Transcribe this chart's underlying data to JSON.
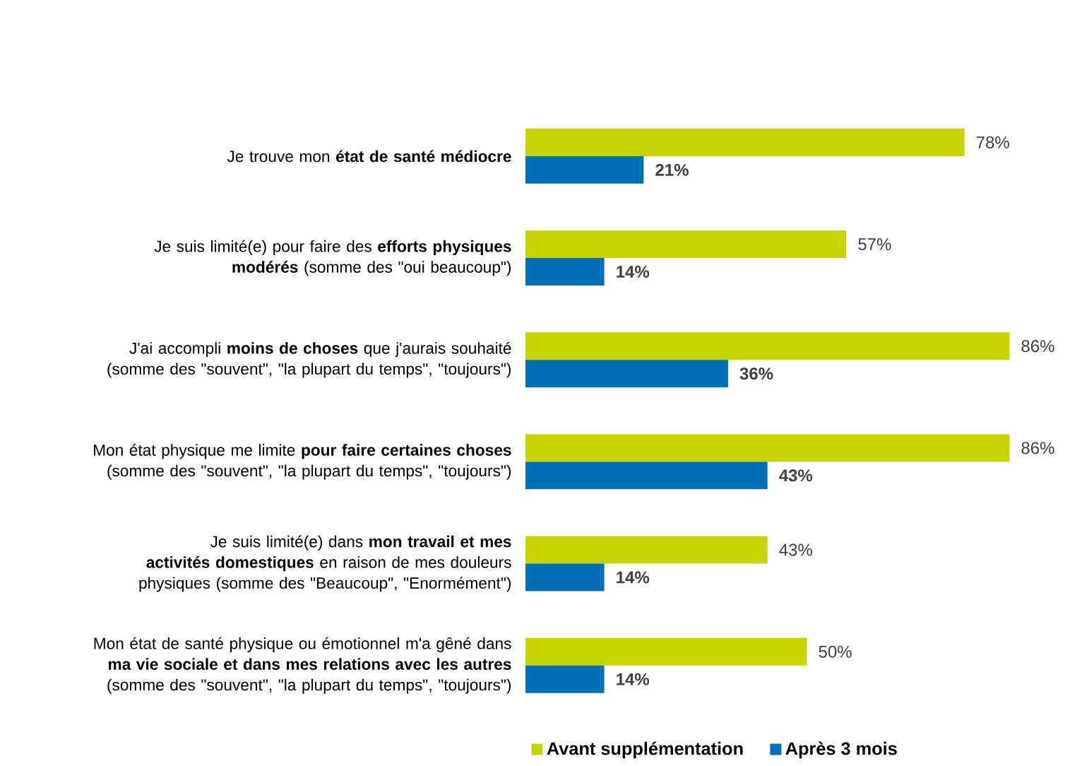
{
  "chart_data": {
    "type": "bar",
    "orientation": "horizontal",
    "categories": [
      "Je trouve mon **état de santé médiocre**",
      "Je suis limité(e) pour faire des **efforts physiques modérés** (somme des \"oui beaucoup\")",
      "J'ai accompli **moins de choses** que j'aurais souhaité (somme des \"souvent\", \"la plupart du temps\", \"toujours\")",
      "Mon état physique me limite **pour faire certaines choses** (somme des \"souvent\", \"la plupart du temps\", \"toujours\")",
      "Je suis limité(e) dans **mon travail et mes activités domestiques** en raison de mes douleurs physiques (somme des \"Beaucoup\", \"Enormément\")",
      "Mon état de santé physique ou émotionnel m'a gêné dans **ma vie sociale et dans mes relations avec les autres** (somme des \"souvent\", \"la plupart du temps\", \"toujours\")"
    ],
    "series": [
      {
        "name": "Avant supplémentation",
        "color": "#c8d400",
        "values": [
          78,
          57,
          86,
          86,
          43,
          50
        ],
        "value_labels": [
          "78%",
          "57%",
          "86%",
          "86%",
          "43%",
          "50%"
        ]
      },
      {
        "name": "Après 3 mois",
        "color": "#0070b8",
        "values": [
          21,
          14,
          36,
          43,
          14,
          14
        ],
        "value_labels": [
          "21%",
          "14%",
          "36%",
          "43%",
          "14%",
          "14%"
        ]
      }
    ],
    "xlim": [
      0,
      86
    ],
    "tick_labels": "y",
    "legend": "bottom"
  }
}
